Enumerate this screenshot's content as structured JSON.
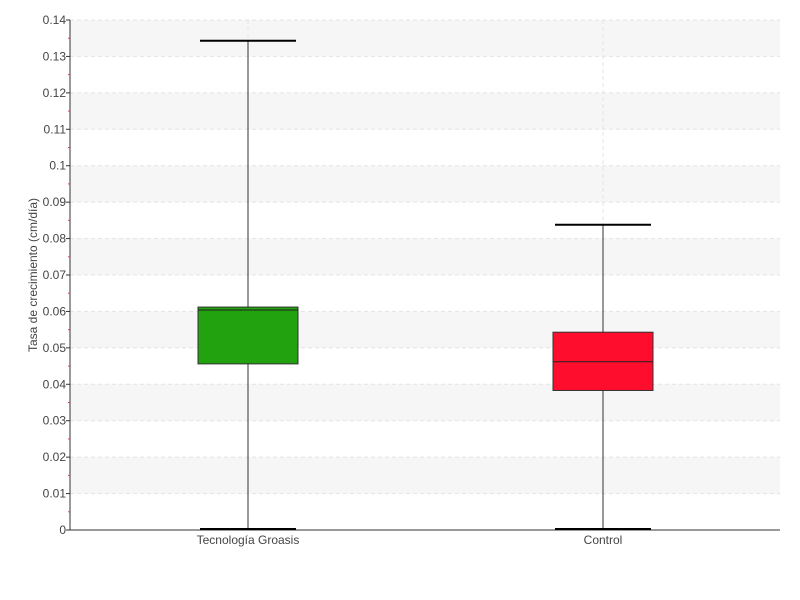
{
  "chart_data": {
    "type": "boxplot",
    "ylabel": "Tasa de crecimiento (cm/día)",
    "ylim": [
      0,
      0.14
    ],
    "yticks": [
      0,
      0.01,
      0.02,
      0.03,
      0.04,
      0.05,
      0.06,
      0.07,
      0.08,
      0.09,
      0.1,
      0.11,
      0.12,
      0.13,
      0.14
    ],
    "ytick_labels": [
      "0",
      "0.01",
      "0.02",
      "0.03",
      "0.04",
      "0.05",
      "0.06",
      "0.07",
      "0.08",
      "0.09",
      "0.1",
      "0.11",
      "0.12",
      "0.13",
      "0.14"
    ],
    "grid": true,
    "categories": [
      "Tecnología Groasis",
      "Control"
    ],
    "series": [
      {
        "category": "Tecnología Groasis",
        "min": 0.0,
        "q1": 0.0456,
        "median": 0.0604,
        "q3": 0.0612,
        "max": 0.1343,
        "color": "#22a20e"
      },
      {
        "category": "Control",
        "min": 0.0,
        "q1": 0.0383,
        "median": 0.0462,
        "q3": 0.0543,
        "max": 0.0838,
        "color": "#ff0d2d"
      }
    ]
  }
}
